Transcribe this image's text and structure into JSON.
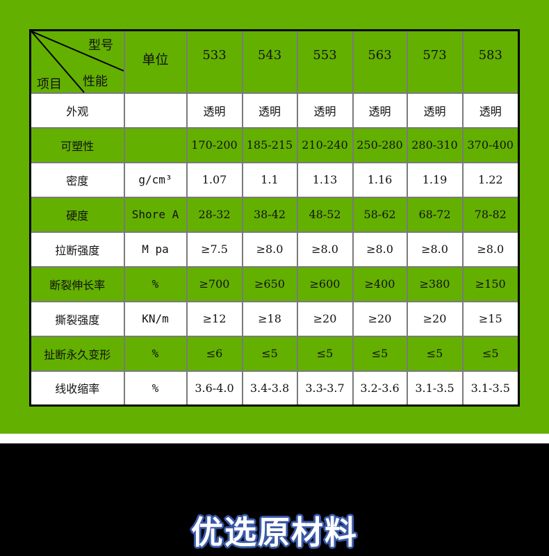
{
  "header": {
    "corner_model": "型号",
    "corner_property": "性能",
    "corner_item": "项目",
    "unit": "单位",
    "models": [
      "533",
      "543",
      "553",
      "563",
      "573",
      "583"
    ]
  },
  "rows": [
    {
      "label": "外观",
      "unit": "",
      "values": [
        "透明",
        "透明",
        "透明",
        "透明",
        "透明",
        "透明"
      ]
    },
    {
      "label": "可塑性",
      "unit": "",
      "values": [
        "170-200",
        "185-215",
        "210-240",
        "250-280",
        "280-310",
        "370-400"
      ]
    },
    {
      "label": "密度",
      "unit": "g/cm³",
      "values": [
        "1.07",
        "1.1",
        "1.13",
        "1.16",
        "1.19",
        "1.22"
      ]
    },
    {
      "label": "硬度",
      "unit": "Shore A",
      "values": [
        "28-32",
        "38-42",
        "48-52",
        "58-62",
        "68-72",
        "78-82"
      ]
    },
    {
      "label": "拉断强度",
      "unit": "M pa",
      "values": [
        "≥7.5",
        "≥8.0",
        "≥8.0",
        "≥8.0",
        "≥8.0",
        "≥8.0"
      ]
    },
    {
      "label": "断裂伸长率",
      "unit": "%",
      "values": [
        "≥700",
        "≥650",
        "≥600",
        "≥400",
        "≥380",
        "≥150"
      ]
    },
    {
      "label": "撕裂强度",
      "unit": "KN/m",
      "values": [
        "≥12",
        "≥18",
        "≥20",
        "≥20",
        "≥20",
        "≥15"
      ]
    },
    {
      "label": "扯断永久变形",
      "unit": "%",
      "values": [
        "≤6",
        "≤5",
        "≤5",
        "≤5",
        "≤5",
        "≤5"
      ]
    },
    {
      "label": "线收缩率",
      "unit": "%",
      "values": [
        "3.6-4.0",
        "3.4-3.8",
        "3.3-3.7",
        "3.2-3.6",
        "3.1-3.5",
        "3.1-3.5"
      ]
    }
  ],
  "section_title": "优选原材料",
  "colors": {
    "green": "#63b000",
    "black": "#000000",
    "title_outline": "#3a5aa8"
  }
}
